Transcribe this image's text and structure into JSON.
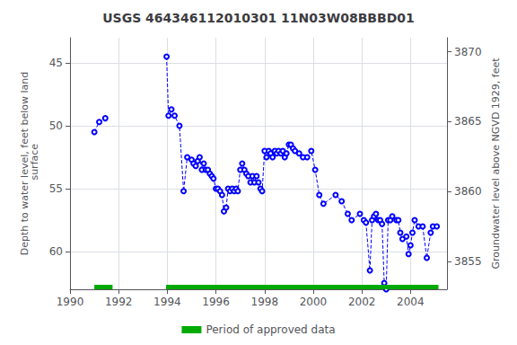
{
  "chart_data": {
    "type": "line",
    "title": "USGS 464346112010301 11N03W08BBBD01",
    "ylabel": "Depth to water level, feet below land\n surface",
    "y2label": "Groundwater level above NGVD 1929, feet",
    "x": [
      1991.0,
      1991.2,
      1991.45,
      null,
      1993.97,
      1994.05,
      1994.17,
      1994.3,
      1994.5,
      1994.67,
      1994.82,
      1995.0,
      1995.08,
      1995.17,
      1995.25,
      1995.33,
      1995.42,
      1995.5,
      1995.58,
      1995.67,
      1995.75,
      1995.83,
      1995.9,
      1996.0,
      1996.08,
      1996.17,
      1996.25,
      1996.33,
      1996.42,
      1996.5,
      1996.58,
      1996.67,
      1996.75,
      1996.83,
      1996.9,
      1997.0,
      1997.08,
      1997.17,
      1997.25,
      1997.33,
      1997.42,
      1997.5,
      1997.58,
      1997.67,
      1997.75,
      1997.83,
      1997.9,
      1998.0,
      1998.08,
      1998.17,
      1998.25,
      1998.33,
      1998.42,
      1998.5,
      1998.58,
      1998.67,
      1998.75,
      1998.83,
      1998.9,
      1999.0,
      1999.08,
      1999.17,
      1999.25,
      1999.42,
      1999.58,
      1999.75,
      1999.92,
      2000.08,
      2000.25,
      2000.42,
      2000.92,
      2001.17,
      2001.42,
      2001.58,
      2001.92,
      2002.08,
      2002.17,
      2002.33,
      2002.42,
      2002.5,
      2002.58,
      2002.67,
      2002.75,
      2002.83,
      2002.92,
      2003.0,
      2003.08,
      2003.17,
      2003.25,
      2003.42,
      2003.5,
      2003.58,
      2003.67,
      2003.83,
      2003.92,
      2004.0,
      2004.08,
      2004.17,
      2004.33,
      2004.5,
      2004.67,
      2004.83,
      2004.92,
      2005.08
    ],
    "series": [
      {
        "color": "#0000ff",
        "line_style": "dashed",
        "marker": "circle",
        "values": [
          50.5,
          49.7,
          49.4,
          null,
          44.5,
          49.2,
          48.7,
          49.2,
          50.0,
          55.2,
          52.5,
          52.7,
          53.0,
          53.2,
          52.8,
          52.5,
          53.5,
          53.0,
          53.5,
          53.5,
          53.8,
          54.0,
          54.2,
          55.0,
          55.0,
          55.2,
          55.5,
          56.8,
          56.5,
          55.0,
          55.2,
          55.0,
          55.2,
          55.0,
          55.2,
          53.5,
          53.0,
          53.5,
          53.8,
          54.0,
          54.5,
          54.0,
          54.5,
          54.0,
          54.5,
          55.0,
          55.2,
          52.0,
          52.5,
          52.0,
          52.2,
          52.5,
          52.0,
          52.2,
          52.0,
          52.2,
          52.0,
          52.5,
          52.2,
          51.5,
          51.5,
          51.8,
          52.0,
          52.2,
          52.5,
          52.5,
          52.0,
          53.5,
          55.5,
          56.2,
          55.5,
          56.0,
          57.0,
          57.5,
          57.0,
          57.5,
          57.7,
          61.5,
          57.5,
          57.2,
          57.0,
          57.5,
          57.5,
          57.8,
          62.5,
          63.0,
          57.5,
          57.5,
          57.2,
          57.5,
          57.5,
          58.5,
          59.0,
          58.8,
          60.2,
          59.5,
          58.5,
          57.5,
          58.0,
          58.0,
          60.5,
          58.5,
          58.0,
          58.0
        ]
      },
      {
        "name": "Period of approved data",
        "type": "span",
        "color": "#00aa00",
        "periods": [
          [
            1991.0,
            1991.75
          ],
          [
            1993.95,
            2005.15
          ]
        ]
      }
    ],
    "xlim": [
      1990,
      2005.5
    ],
    "xticks": [
      1990,
      1992,
      1994,
      1996,
      1998,
      2000,
      2002,
      2004
    ],
    "ylim": [
      63,
      43
    ],
    "yticks": [
      45,
      50,
      55,
      60
    ],
    "y2lim": [
      3853,
      3871
    ],
    "y2ticks": [
      3855,
      3860,
      3865,
      3870
    ],
    "grid": true,
    "legend": "bottom"
  }
}
